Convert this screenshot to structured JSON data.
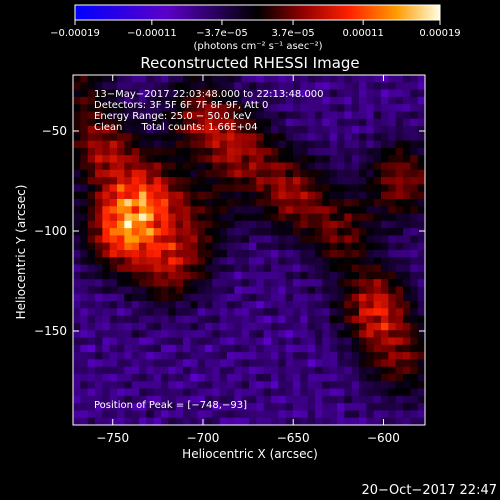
{
  "chart_data": {
    "type": "heatmap",
    "title": "Reconstructed RHESSI Image",
    "xlabel": "Heliocentric X (arcsec)",
    "ylabel": "Heliocentric Y (arcsec)",
    "xlim": [
      -772,
      -577
    ],
    "ylim": [
      -197,
      -22
    ],
    "xticks": [
      -750,
      -700,
      -650,
      -600
    ],
    "xtick_labels": [
      "−750",
      "−700",
      "−650",
      "−600"
    ],
    "yticks": [
      -50,
      -100,
      -150
    ],
    "ytick_labels": [
      "−50",
      "−100",
      "−150"
    ],
    "colorbar": {
      "ticks": [
        -0.00019,
        -0.00011,
        -3.7e-05,
        3.7e-05,
        0.00011,
        0.00019
      ],
      "tick_labels": [
        "−0.00019",
        "−0.00011",
        "−3.7e−05",
        "3.7e−05",
        "0.00011",
        "0.00019"
      ],
      "units_label": "(photons cm⁻² s⁻¹ asec⁻²)",
      "range": [
        -0.00019,
        0.00019
      ]
    },
    "annotations": [
      "13−May−2017 22:03:48.000 to 22:13:48.000",
      "Detectors: 3F 5F 6F 7F 8F 9F, Att 0",
      "Energy Range: 25.0 − 50.0 keV",
      "Clean      Total counts: 1.66E+04"
    ],
    "peak_label": "Position of Peak = [−748,−93]",
    "peak": [
      -748,
      -93
    ],
    "sources": [
      {
        "x": -745,
        "y": -100,
        "amp": 0.00019
      },
      {
        "x": -730,
        "y": -82,
        "amp": 0.00014
      },
      {
        "x": -755,
        "y": -60,
        "amp": 0.00012
      },
      {
        "x": -718,
        "y": -118,
        "amp": 0.00012
      },
      {
        "x": -702,
        "y": -42,
        "amp": 0.00011
      },
      {
        "x": -680,
        "y": -60,
        "amp": 0.00012
      },
      {
        "x": -652,
        "y": -80,
        "amp": 0.00012
      },
      {
        "x": -625,
        "y": -100,
        "amp": 0.0001
      },
      {
        "x": -590,
        "y": -75,
        "amp": 0.00012
      },
      {
        "x": -605,
        "y": -138,
        "amp": 0.00015
      },
      {
        "x": -590,
        "y": -165,
        "amp": 0.0001
      },
      {
        "x": -770,
        "y": -30,
        "amp": 8e-05
      },
      {
        "x": -700,
        "y": -95,
        "amp": 7e-05
      }
    ]
  },
  "footer": {
    "timestamp": "20−Oct−2017 22:47"
  }
}
